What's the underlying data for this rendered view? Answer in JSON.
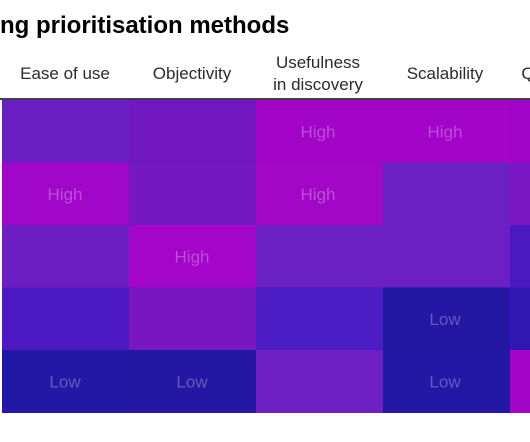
{
  "header": {
    "title": "ng prioritisation methods"
  },
  "chart_data": {
    "type": "heatmap",
    "title": "ng prioritisation methods",
    "columns": [
      "Ease of use",
      "Objectivity",
      "Usefulness in discovery",
      "Scalability",
      "Q"
    ],
    "rows": [
      [
        "",
        "",
        "High",
        "High",
        ""
      ],
      [
        "High",
        "",
        "High",
        "",
        ""
      ],
      [
        "",
        "High",
        "",
        "",
        ""
      ],
      [
        "",
        "",
        "",
        "Low",
        ""
      ],
      [
        "Low",
        "Low",
        "",
        "Low",
        ""
      ]
    ],
    "cell_colors": [
      [
        "#6a1fc4",
        "#7218c2",
        "#a305c8",
        "#a204c8",
        "#a004c8"
      ],
      [
        "#a107c8",
        "#7419c2",
        "#a207c8",
        "#6a20c4",
        "#7a16c3"
      ],
      [
        "#6c1ec4",
        "#a306c8",
        "#6a20c4",
        "#6c1fc4",
        "#4a1ac0"
      ],
      [
        "#4d19c2",
        "#7716c2",
        "#4b1bc3",
        "#2417a3",
        "#3218b2"
      ],
      [
        "#2318a6",
        "#2417a3",
        "#6d1ec4",
        "#2318a6",
        "#a204c8"
      ]
    ]
  }
}
